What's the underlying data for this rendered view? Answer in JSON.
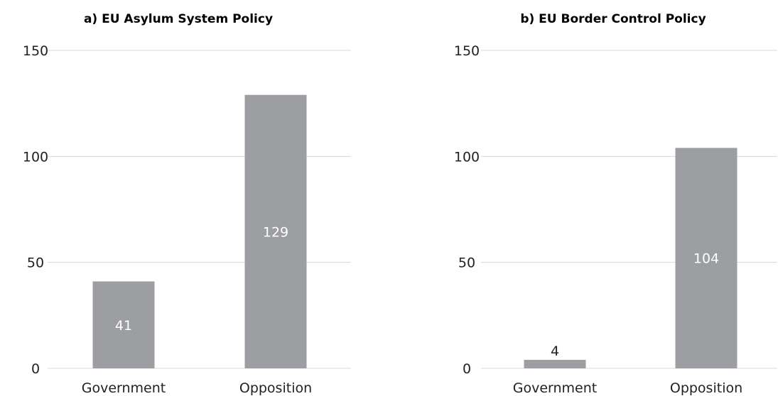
{
  "chart_data": [
    {
      "type": "bar",
      "title": "a) EU Asylum System Policy",
      "categories": [
        "Government",
        "Opposition"
      ],
      "values": [
        41,
        129
      ],
      "ylim": [
        0,
        150
      ],
      "yticks": [
        0,
        50,
        100,
        150
      ],
      "grid": true,
      "bar_color": "#9d9ea2"
    },
    {
      "type": "bar",
      "title": "b) EU Border Control Policy",
      "categories": [
        "Government",
        "Opposition"
      ],
      "values": [
        4,
        104
      ],
      "ylim": [
        0,
        150
      ],
      "yticks": [
        0,
        50,
        100,
        150
      ],
      "grid": true,
      "bar_color": "#9d9ea2"
    }
  ]
}
